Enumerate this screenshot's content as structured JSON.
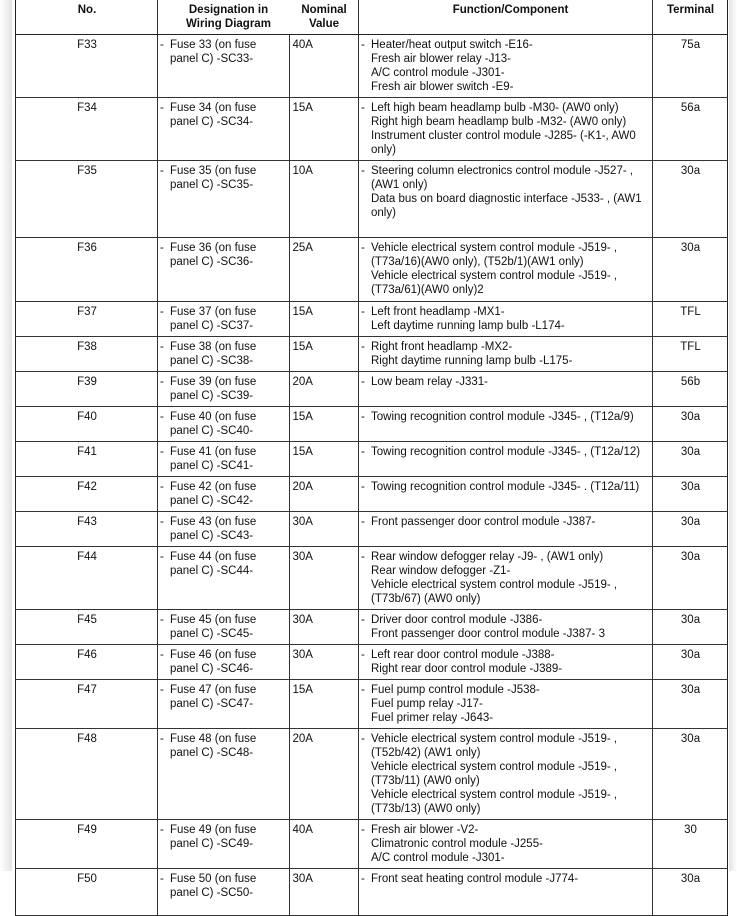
{
  "headers": {
    "no": "No.",
    "designation": "Designation in Wiring Diagram",
    "nominal": "Nominal Value",
    "function": "Function/Component",
    "terminal": "Terminal"
  },
  "rows": [
    {
      "no": "F33",
      "designation": "Fuse 33 (on fuse panel C) -SC33-",
      "nominal": "40A",
      "function": [
        "Heater/heat output switch -E16-",
        "Fresh air blower relay -J13-",
        "A/C control module -J301-",
        "Fresh air blower switch -E9-"
      ],
      "terminal": "75a"
    },
    {
      "no": "F34",
      "designation": "Fuse 34 (on fuse panel C) -SC34-",
      "nominal": "15A",
      "function": [
        "Left high beam headlamp bulb -M30- (AW0 only)",
        "Right high beam headlamp bulb -M32- (AW0 only)",
        "Instrument cluster control module -J285- (-K1-, AW0 only)"
      ],
      "terminal": "56a"
    },
    {
      "no": "F35",
      "designation": "Fuse 35 (on fuse panel C) -SC35-",
      "nominal": "10A",
      "function": [
        "Steering column electronics control module -J527- , (AW1 only)",
        "Data bus on board diagnostic interface -J533- , (AW1 only)"
      ],
      "terminal": "30a"
    },
    {
      "no": "F36",
      "designation": "Fuse 36 (on fuse panel C) -SC36-",
      "nominal": "25A",
      "function": [
        "Vehicle electrical system control module -J519- , (T73a/16)(AW0 only), (T52b/1)(AW1 only)",
        "Vehicle electrical system control module -J519- , (T73a/61)(AW0 only)2"
      ],
      "terminal": "30a"
    },
    {
      "no": "F37",
      "designation": "Fuse 37 (on fuse panel C) -SC37-",
      "nominal": "15A",
      "function": [
        "Left front headlamp -MX1-",
        "Left daytime running lamp bulb -L174-"
      ],
      "terminal": "TFL"
    },
    {
      "no": "F38",
      "designation": "Fuse 38 (on fuse panel C) -SC38-",
      "nominal": "15A",
      "function": [
        "Right front headlamp -MX2-",
        "Right daytime running lamp bulb -L175-"
      ],
      "terminal": "TFL"
    },
    {
      "no": "F39",
      "designation": "Fuse 39 (on fuse panel C) -SC39-",
      "nominal": "20A",
      "function": [
        "Low beam relay -J331-"
      ],
      "terminal": "56b"
    },
    {
      "no": "F40",
      "designation": "Fuse 40 (on fuse panel C) -SC40-",
      "nominal": "15A",
      "function": [
        "Towing recognition control module -J345- , (T12a/9)"
      ],
      "terminal": "30a"
    },
    {
      "no": "F41",
      "designation": "Fuse 41 (on fuse panel C) -SC41-",
      "nominal": "15A",
      "function": [
        "Towing recognition control module -J345- , (T12a/12)"
      ],
      "terminal": "30a"
    },
    {
      "no": "F42",
      "designation": "Fuse 42 (on fuse panel C) -SC42-",
      "nominal": "20A",
      "function": [
        "Towing recognition control module -J345- . (T12a/11)"
      ],
      "terminal": "30a"
    },
    {
      "no": "F43",
      "designation": "Fuse 43 (on fuse panel C) -SC43-",
      "nominal": "30A",
      "function": [
        "Front passenger door control module -J387-"
      ],
      "terminal": "30a"
    },
    {
      "no": "F44",
      "designation": "Fuse 44 (on fuse panel C) -SC44-",
      "nominal": "30A",
      "function": [
        "Rear window defogger relay -J9- , (AW1 only)",
        "Rear window defogger -Z1-",
        "Vehicle electrical system control module -J519- , (T73b/67) (AW0 only)"
      ],
      "terminal": "30a"
    },
    {
      "no": "F45",
      "designation": "Fuse 45 (on fuse panel C) -SC45-",
      "nominal": "30A",
      "function": [
        "Driver door control module -J386-",
        "Front passenger door control module -J387- 3"
      ],
      "terminal": "30a"
    },
    {
      "no": "F46",
      "designation": "Fuse 46 (on fuse panel C) -SC46-",
      "nominal": "30A",
      "function": [
        "Left rear door control module -J388-",
        "Right rear door control module -J389-"
      ],
      "terminal": "30a"
    },
    {
      "no": "F47",
      "designation": "Fuse 47 (on fuse panel C) -SC47-",
      "nominal": "15A",
      "function": [
        "Fuel pump control module -J538-",
        "Fuel pump relay -J17-",
        "Fuel primer relay -J643-"
      ],
      "terminal": "30a"
    },
    {
      "no": "F48",
      "designation": "Fuse 48 (on fuse panel C) -SC48-",
      "nominal": "20A",
      "function": [
        "Vehicle electrical system control module -J519- , (T52b/42) (AW1 only)",
        "Vehicle electrical system control module -J519- , (T73b/11) (AW0 only)",
        "Vehicle electrical system control module -J519- , (T73b/13) (AW0 only)"
      ],
      "terminal": "30a"
    },
    {
      "no": "F49",
      "designation": "Fuse 49 (on fuse panel C) -SC49-",
      "nominal": "40A",
      "function": [
        "Fresh air blower -V2-",
        "Climatronic control module -J255-",
        "A/C control module -J301-"
      ],
      "terminal": "30"
    },
    {
      "no": "F50",
      "designation": "Fuse 50 (on fuse panel C) -SC50-",
      "nominal": "30A",
      "function": [
        "Front seat heating control module -J774-"
      ],
      "terminal": "30a"
    }
  ],
  "dash": "-"
}
